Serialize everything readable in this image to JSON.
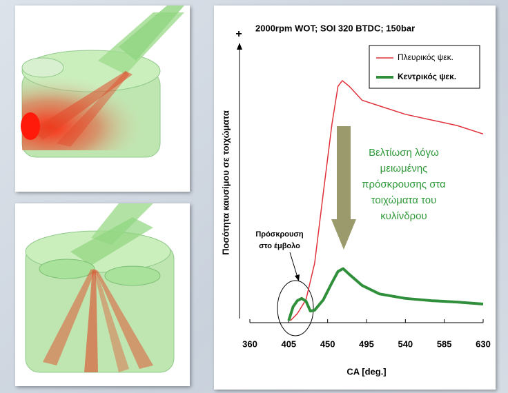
{
  "chart_data": {
    "type": "line",
    "title": "2000rpm WOT; SOI 320 BTDC; 150bar",
    "x_label": "CA [deg.]",
    "y_label": "Ποσότητα καυσίμου σε τοιχώματα",
    "y_axis_marker": "+",
    "xlim": [
      360,
      630
    ],
    "xticks": [
      360,
      405,
      450,
      495,
      540,
      585,
      630
    ],
    "ylim": [
      0,
      100
    ],
    "series": [
      {
        "name": "Πλευρικός ψεκ.",
        "color": "#e0303a",
        "x": [
          407,
          415,
          425,
          435,
          445,
          455,
          462,
          467,
          475,
          490,
          510,
          540,
          570,
          600,
          630
        ],
        "values": [
          0.5,
          3,
          8,
          21,
          46,
          70.5,
          84,
          86,
          84,
          79,
          77,
          74,
          72,
          70,
          67
        ]
      },
      {
        "name": "Κεντρικός ψεκ.",
        "color": "#2f8f3a",
        "x": [
          405,
          410,
          415,
          420,
          425,
          430,
          435,
          445,
          455,
          462,
          468,
          475,
          490,
          510,
          540,
          570,
          600,
          630
        ],
        "values": [
          0.5,
          5.4,
          7.6,
          8.4,
          7.4,
          3.9,
          4.2,
          7.9,
          14,
          18,
          19,
          17,
          13,
          10,
          8.4,
          7.6,
          7.1,
          6.4
        ]
      }
    ],
    "annotations": {
      "improvement": [
        "Βελτίωση λόγω",
        "μειωμένης",
        "πρόσκρουσης στα",
        "τοιχώματα του",
        "κυλίνδρου"
      ],
      "piston": [
        "Πρόσκρουση",
        "στο έμβολο"
      ]
    }
  }
}
